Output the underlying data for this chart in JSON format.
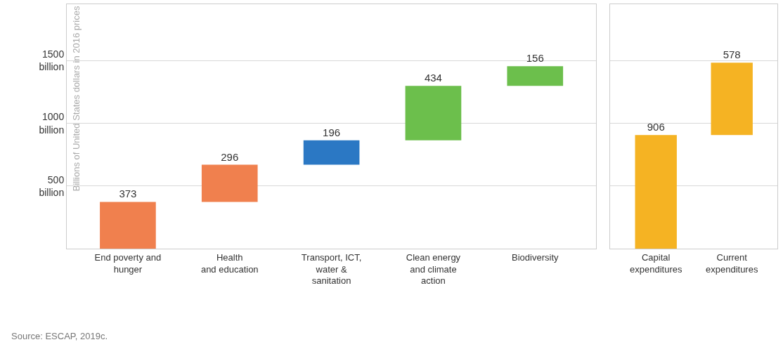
{
  "chart_data": [
    {
      "type": "bar",
      "ylabel": "Billions of United States dollars in 2016 prices",
      "categories": [
        "End poverty and\nhunger",
        "Health\nand education",
        "Transport, ICT,\nwater &\nsanitation",
        "Clean energy\nand climate\naction",
        "Biodiversity"
      ],
      "values": [
        373,
        296,
        196,
        434,
        156
      ],
      "base": [
        0,
        373,
        669,
        865,
        1299
      ],
      "colors": [
        "#f0804e",
        "#f0804e",
        "#2b78c4",
        "#6cbf4c",
        "#6cbf4c"
      ],
      "data_labels": true,
      "ylim": [
        0,
        1950
      ],
      "yticks": [
        {
          "value": 500,
          "label": "500 billion"
        },
        {
          "value": 1000,
          "label": "1000 billion"
        },
        {
          "value": 1500,
          "label": "1500 billion"
        }
      ],
      "grid": "y",
      "annotations": [
        "Source: ESCAP, 2019c."
      ]
    },
    {
      "type": "bar",
      "categories": [
        "Capital\nexpenditures",
        "Current\nexpenditures"
      ],
      "values": [
        906,
        578
      ],
      "base": [
        0,
        906
      ],
      "colors": [
        "#f5b323",
        "#f5b323"
      ],
      "data_labels": true,
      "ylim": [
        0,
        1950
      ],
      "yticks": [
        500,
        1000,
        1500
      ],
      "grid": "y",
      "tick_labels": "x"
    }
  ]
}
